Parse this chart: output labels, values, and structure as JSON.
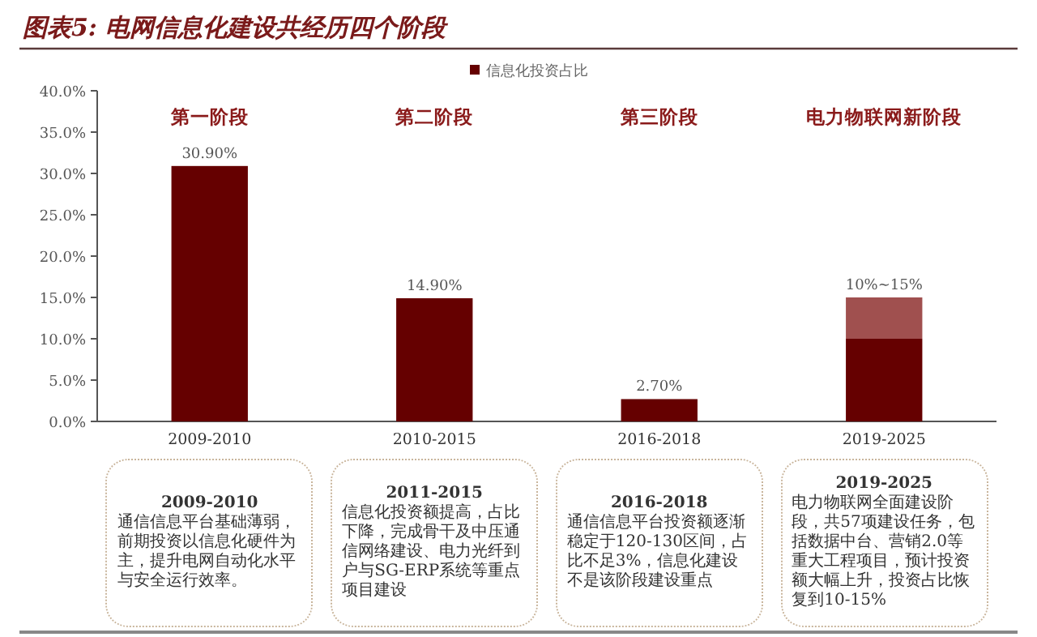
{
  "chart_data": {
    "type": "bar",
    "title": "图表5: 电网信息化建设共经历四个阶段",
    "categories": [
      "2009-2010",
      "2010-2015",
      "2016-2018",
      "2019-2025"
    ],
    "stacked": true,
    "series": [
      {
        "name": "信息化投资占比",
        "color": "#650000",
        "values": [
          30.9,
          14.9,
          2.7,
          10
        ],
        "value_labels": [
          "30.90%",
          "14.90%",
          "2.70%",
          null
        ]
      },
      {
        "color": "#a0504f",
        "values": [
          null,
          null,
          null,
          5
        ]
      }
    ],
    "ylim": [
      0,
      40
    ],
    "yticks": [
      {
        "value": 0,
        "label": "0.0%"
      },
      {
        "value": 5,
        "label": "5.0%"
      },
      {
        "value": 10,
        "label": "10.0%"
      },
      {
        "value": 15,
        "label": "15.0%"
      },
      {
        "value": 20,
        "label": "20.0%"
      },
      {
        "value": 25,
        "label": "25.0%"
      },
      {
        "value": 30,
        "label": "30.0%"
      },
      {
        "value": 35,
        "label": "35.0%"
      },
      {
        "value": 40,
        "label": "40.0%"
      }
    ],
    "grid": false,
    "legend": "top",
    "annotations": [
      "第一阶段",
      "第二阶段",
      "第三阶段",
      "电力物联网新阶段",
      "2009-2010",
      "通信信息平台基础薄弱，前期投资以信息化硬件为主，提升电网自动化水平与安全运行效率。",
      "2011-2015",
      "信息化投资额提高，占比下降，完成骨干及中压通信网络建设、电力光纤到户与SG-ERP系统等重点项目建设",
      "2016-2018",
      "通信信息平台投资额逐渐稳定于120-130区间，占比不足3%，信息化建设不是该阶段建设重点",
      "2019-2025",
      "电力物联网全面建设阶段，共57项建设任务，包括数据中台、营销2.0等重大工程项目，预计投资额大幅上升，投资占比恢复到10-15%",
      {
        "text": "10%~15%",
        "x": "2019-2025",
        "y": 15
      }
    ]
  }
}
